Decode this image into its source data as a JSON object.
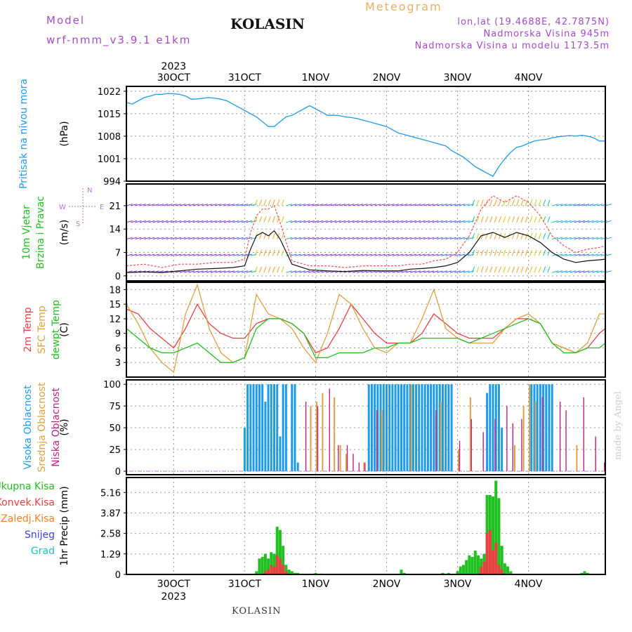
{
  "header": {
    "model_label": "Model",
    "model_name": "wrf-nmm_v3.9.1 e1km",
    "station": "KOLASIN",
    "title": "Meteogram",
    "coords": "lon,lat (19.4688E, 42.7875N)",
    "elevation": "Nadmorska Visina 945m",
    "model_elevation": "Nadmorska Visina u modelu 1173.5m"
  },
  "footer": {
    "station": "KOLASIN",
    "credit": "made by Angel"
  },
  "colors": {
    "pressure": "#1e9be8",
    "wind_speed": "#111111",
    "gust": "#ff5050",
    "temp2m": "#e84040",
    "sfc_temp": "#e0a040",
    "dewpoint": "#20c020",
    "high_cloud": "#1e9be8",
    "mid_cloud": "#e0a040",
    "low_cloud": "#c02080",
    "total_precip": "#20c020",
    "conv_precip": "#e84040",
    "frozen_precip": "#ff8020",
    "snow": "#4040e0",
    "hail": "#20c0c0"
  },
  "chart_data": [
    {
      "type": "line",
      "panel": "pressure",
      "ylabel_outer": "Pritisak na nivou mora",
      "ylabel_unit": "(hPa)",
      "yticks": [
        994,
        1001,
        1008,
        1015,
        1022
      ],
      "ylim": [
        994,
        1023.5
      ],
      "x_day_labels": [
        "30OCT",
        "31OCT",
        "1NOV",
        "2NOV",
        "3NOV",
        "4NOV"
      ],
      "x_year": "2023",
      "x_range_hours": [
        -16,
        146
      ],
      "series": [
        {
          "values_hour": [
            -16,
            -14,
            -12,
            -10,
            -8,
            -6,
            -4,
            -2,
            0,
            2,
            4,
            6,
            8,
            10,
            12,
            14,
            16,
            18,
            20,
            22,
            24,
            26,
            28,
            30,
            32,
            34,
            36,
            38,
            40,
            42,
            44,
            46,
            48,
            50,
            52,
            54,
            56,
            58,
            60,
            62,
            64,
            66,
            68,
            70,
            72,
            74,
            76,
            78,
            80,
            82,
            84,
            86,
            88,
            90,
            92,
            94,
            96,
            98,
            100,
            102,
            104,
            106,
            108,
            110,
            112,
            114,
            116,
            118,
            120,
            122,
            124,
            126,
            128,
            130,
            132,
            134,
            136,
            138,
            140,
            142,
            144,
            146
          ],
          "values": [
            1018.5,
            1018.0,
            1019.0,
            1020.0,
            1020.5,
            1021.0,
            1021.0,
            1021.3,
            1021.2,
            1021.0,
            1020.5,
            1019.5,
            1019.6,
            1019.8,
            1020.0,
            1019.8,
            1019.5,
            1019.0,
            1018.0,
            1017.0,
            1016.0,
            1015.0,
            1014.0,
            1012.5,
            1011.0,
            1011.0,
            1012.5,
            1014.0,
            1014.5,
            1015.5,
            1016.5,
            1017.5,
            1016.5,
            1015.5,
            1014.5,
            1014.5,
            1014.4,
            1014.0,
            1013.8,
            1013.5,
            1013.0,
            1012.5,
            1012.0,
            1011.5,
            1011.0,
            1010.0,
            1009.0,
            1008.5,
            1008.0,
            1007.5,
            1007.0,
            1006.5,
            1006.0,
            1005.5,
            1005.0,
            1003.5,
            1002.5,
            1001.5,
            1000.0,
            998.5,
            997.5,
            996.5,
            995.5,
            998.5,
            1001.0,
            1003.0,
            1004.5,
            1005.0,
            1005.8,
            1006.5,
            1006.8,
            1007.0,
            1007.5,
            1007.8,
            1008.0,
            1008.2,
            1008.0,
            1008.3,
            1008.0,
            1007.5,
            1006.5,
            1006.5
          ]
        }
      ],
      "grid": true
    },
    {
      "type": "line",
      "panel": "wind",
      "ylabel_outer": "10m Vjetar Brzina i Pravac",
      "ylabel_unit": "(m/s)",
      "compass_labels": [
        "N",
        "W",
        "S",
        "E"
      ],
      "yticks": [
        0,
        7,
        14,
        21
      ],
      "ylim": [
        -1.5,
        27.5
      ],
      "series": [
        {
          "name": "speed",
          "x_hour": [
            -16,
            -10,
            -4,
            2,
            8,
            14,
            20,
            24,
            26,
            28,
            30,
            32,
            34,
            36,
            40,
            46,
            52,
            58,
            64,
            70,
            76,
            80,
            84,
            88,
            92,
            96,
            100,
            104,
            108,
            112,
            116,
            120,
            124,
            128,
            132,
            136,
            140,
            144,
            146
          ],
          "values": [
            1.0,
            1.2,
            1.0,
            1.5,
            2.0,
            2.2,
            2.5,
            3.0,
            8.0,
            12.0,
            13.0,
            12.0,
            13.5,
            11.0,
            3.5,
            1.8,
            1.5,
            1.3,
            1.6,
            1.5,
            1.5,
            2.0,
            2.2,
            2.5,
            3.0,
            4.0,
            7.0,
            12.0,
            13.0,
            11.5,
            13.0,
            12.0,
            10.0,
            7.0,
            5.0,
            4.0,
            4.5,
            4.8,
            5.0
          ]
        },
        {
          "name": "gust",
          "x_hour": [
            -16,
            -10,
            -4,
            2,
            8,
            14,
            20,
            24,
            26,
            28,
            30,
            32,
            34,
            36,
            40,
            46,
            52,
            58,
            64,
            70,
            76,
            80,
            84,
            88,
            92,
            96,
            100,
            104,
            108,
            112,
            116,
            120,
            124,
            128,
            132,
            136,
            140,
            144,
            146
          ],
          "values": [
            3.0,
            3.5,
            2.5,
            3.5,
            3.5,
            4.0,
            4.0,
            5.0,
            13.0,
            18.0,
            20.0,
            20.0,
            21.0,
            16.0,
            4.5,
            3.0,
            3.0,
            2.5,
            3.0,
            3.0,
            3.0,
            3.5,
            3.5,
            4.5,
            5.0,
            7.0,
            12.0,
            20.0,
            24.0,
            22.0,
            24.0,
            22.0,
            18.0,
            12.0,
            9.0,
            7.0,
            8.0,
            8.5,
            9.0
          ]
        }
      ],
      "grid": true
    },
    {
      "type": "line",
      "panel": "temperature",
      "ylabel_outer": [
        "2m Temp",
        "SFC Temp",
        "dewpt Temp"
      ],
      "ylabel_unit": "(C)",
      "yticks": [
        3,
        6,
        9,
        12,
        15,
        18
      ],
      "ylim": [
        0,
        19.5
      ],
      "series": [
        {
          "name": "2m Temp",
          "x_hour": [
            -16,
            -12,
            -8,
            -4,
            0,
            4,
            8,
            12,
            16,
            20,
            24,
            28,
            32,
            36,
            40,
            44,
            48,
            52,
            56,
            60,
            64,
            68,
            72,
            76,
            80,
            84,
            88,
            92,
            96,
            100,
            104,
            108,
            112,
            116,
            120,
            124,
            128,
            132,
            136,
            140,
            144,
            146
          ],
          "values": [
            14,
            13,
            10,
            8,
            6,
            10,
            15,
            11,
            9,
            8,
            8,
            11,
            12,
            12,
            11,
            9,
            5,
            6,
            10,
            15,
            12,
            9,
            7,
            7,
            7,
            9,
            13,
            11,
            9,
            8,
            8,
            8,
            10,
            12,
            12,
            11,
            7,
            6,
            5,
            6,
            9,
            10
          ]
        },
        {
          "name": "SFC Temp",
          "x_hour": [
            -16,
            -12,
            -8,
            -4,
            0,
            4,
            8,
            12,
            16,
            20,
            24,
            28,
            32,
            36,
            40,
            44,
            48,
            52,
            56,
            60,
            64,
            68,
            72,
            76,
            80,
            84,
            88,
            92,
            96,
            100,
            104,
            108,
            112,
            116,
            120,
            124,
            128,
            132,
            136,
            140,
            144,
            146
          ],
          "values": [
            15,
            11,
            6,
            3,
            1,
            13,
            19,
            10,
            5,
            3,
            4,
            17,
            13,
            12,
            10,
            6,
            3,
            9,
            17,
            15,
            10,
            6,
            5,
            7,
            7,
            12,
            18,
            10,
            8,
            7,
            7,
            7,
            10,
            12,
            13,
            11,
            7,
            6,
            5,
            7,
            13,
            13
          ]
        },
        {
          "name": "dewpt Temp",
          "x_hour": [
            -16,
            -12,
            -8,
            -4,
            0,
            4,
            8,
            12,
            16,
            20,
            24,
            28,
            32,
            36,
            40,
            44,
            48,
            52,
            56,
            60,
            64,
            68,
            72,
            76,
            80,
            84,
            88,
            92,
            96,
            100,
            104,
            108,
            112,
            116,
            120,
            124,
            128,
            132,
            136,
            140,
            144,
            146
          ],
          "values": [
            10,
            8,
            6,
            5,
            5,
            6,
            7,
            5,
            3,
            3,
            4,
            10,
            12,
            12,
            11,
            9,
            4,
            4,
            5,
            5,
            5,
            6,
            6,
            7,
            7,
            8,
            8,
            8,
            8,
            7,
            8,
            9,
            10,
            11,
            12,
            11,
            7,
            5,
            5,
            6,
            6,
            7
          ]
        }
      ],
      "grid": true
    },
    {
      "type": "bar",
      "panel": "cloud",
      "ylabel_outer": [
        "Visoka Oblacnost",
        "Srednja Oblacnost",
        "Niska Oblacnost"
      ],
      "ylabel_unit": "(%)",
      "yticks": [
        0,
        25,
        50,
        75,
        100
      ],
      "ylim": [
        -4,
        105
      ],
      "series": [
        {
          "name": "Visoka Oblacnost",
          "x_hour": [
            24,
            25,
            26,
            27,
            28,
            29,
            30,
            31,
            32,
            33,
            34,
            35,
            36,
            37,
            38,
            40,
            41,
            42,
            66,
            67,
            68,
            69,
            70,
            71,
            72,
            73,
            74,
            75,
            76,
            77,
            78,
            79,
            80,
            81,
            82,
            83,
            84,
            85,
            86,
            87,
            88,
            89,
            90,
            91,
            92,
            93,
            94,
            106,
            107,
            108,
            109,
            110,
            111,
            121,
            122,
            123,
            124,
            125,
            126,
            127,
            128
          ],
          "values": [
            50,
            100,
            100,
            100,
            100,
            100,
            100,
            80,
            100,
            100,
            100,
            100,
            40,
            100,
            100,
            100,
            100,
            10,
            100,
            100,
            100,
            100,
            100,
            100,
            100,
            100,
            100,
            100,
            100,
            100,
            100,
            100,
            100,
            100,
            100,
            100,
            100,
            100,
            100,
            100,
            100,
            100,
            100,
            100,
            100,
            100,
            100,
            90,
            100,
            100,
            100,
            100,
            50,
            100,
            100,
            100,
            100,
            100,
            100,
            100,
            100
          ]
        },
        {
          "name": "Srednja Oblacnost",
          "x_hour": [
            46,
            48,
            50,
            54,
            56,
            58,
            64,
            70,
            80,
            90,
            96,
            100,
            115,
            118,
            120,
            122,
            136
          ],
          "values": [
            75,
            80,
            90,
            85,
            30,
            20,
            10,
            70,
            100,
            80,
            25,
            85,
            30,
            75,
            100,
            80,
            30
          ]
        },
        {
          "name": "Niska Oblacnost",
          "x_hour": [
            44,
            48,
            52,
            55,
            58,
            60,
            62,
            64,
            68,
            88,
            96,
            100,
            104,
            108,
            112,
            114,
            117,
            124,
            130,
            132,
            138,
            142,
            145
          ],
          "values": [
            80,
            75,
            95,
            30,
            30,
            20,
            10,
            10,
            70,
            70,
            35,
            60,
            45,
            60,
            75,
            55,
            60,
            85,
            80,
            70,
            85,
            40,
            10
          ]
        }
      ],
      "grid": true
    },
    {
      "type": "bar",
      "panel": "precip",
      "ylabel_outer": [
        "Ukupna Kisa",
        "Konvek.Kisa",
        "Zaledj.Kisa",
        "Snijeg",
        "Grad"
      ],
      "ylabel_unit": "1hr Precip (mm)",
      "yticks": [
        0,
        1.29,
        2.58,
        3.87,
        5.16
      ],
      "ylim": [
        0,
        6.1
      ],
      "x_day_labels": [
        "30OCT",
        "31OCT",
        "1NOV",
        "2NOV",
        "3NOV",
        "4NOV"
      ],
      "x_year": "2023",
      "series": [
        {
          "name": "Ukupna Kisa",
          "x_hour": [
            28,
            29,
            30,
            31,
            32,
            33,
            34,
            35,
            36,
            37,
            38,
            39,
            40,
            41,
            42,
            48,
            50,
            77,
            78,
            91,
            93,
            96,
            97,
            98,
            99,
            100,
            101,
            102,
            103,
            104,
            105,
            106,
            107,
            108,
            109,
            110,
            111,
            112,
            113,
            114,
            138,
            139,
            140
          ],
          "values": [
            0.2,
            1.0,
            1.1,
            1.3,
            1.0,
            1.4,
            1.3,
            3.0,
            2.8,
            1.8,
            0.6,
            0.3,
            0.2,
            0.1,
            0.1,
            0.1,
            0.05,
            0.3,
            0.1,
            0.1,
            0.1,
            0.2,
            0.5,
            0.6,
            0.9,
            1.2,
            1.1,
            1.5,
            1.2,
            1.0,
            1.3,
            5.0,
            5.0,
            4.9,
            5.9,
            4.8,
            1.8,
            0.7,
            0.5,
            0.2,
            0.1,
            0.2,
            0.1
          ]
        },
        {
          "name": "Konvek.Kisa",
          "x_hour": [
            31,
            32,
            33,
            34,
            35,
            36,
            37,
            38,
            104,
            105,
            106,
            107,
            108,
            109,
            110,
            111
          ],
          "values": [
            0.2,
            0.3,
            0.6,
            0.5,
            1.2,
            1.0,
            0.6,
            0.2,
            0.5,
            0.8,
            2.6,
            2.8,
            1.5,
            2.0,
            0.6,
            0.3
          ]
        }
      ],
      "grid": true
    }
  ]
}
